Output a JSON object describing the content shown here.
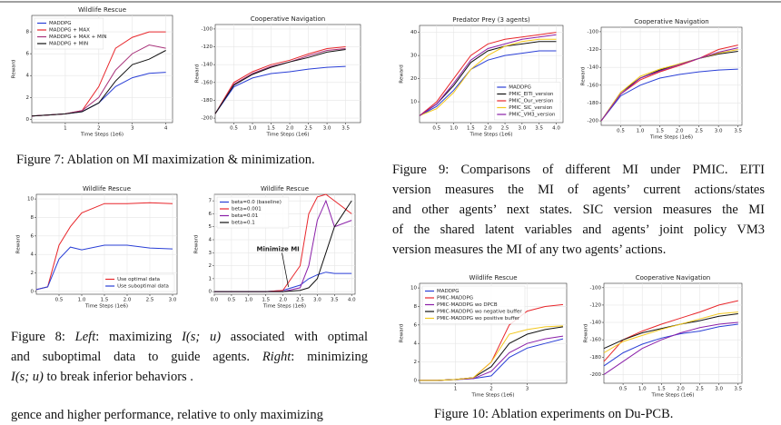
{
  "chart_data": [
    {
      "type": "line",
      "title": "Wildlife Rescue",
      "xlabel": "Time Steps (1e6)",
      "ylabel": "Reward",
      "legend": "upper left",
      "grid": true,
      "x": [
        0,
        0.5,
        1,
        1.5,
        2,
        2.5,
        3,
        3.5,
        4
      ],
      "xlim": [
        0,
        4.2
      ],
      "xticks": [
        1,
        2,
        3,
        4
      ],
      "ylim": [
        -0.3,
        9.5
      ],
      "yticks": [
        0,
        2,
        4,
        6,
        8
      ],
      "series": [
        {
          "name": "MADDPG",
          "color": "#2a3fd6",
          "values": [
            0.3,
            0.4,
            0.5,
            0.7,
            1.5,
            3,
            3.8,
            4.2,
            4.3
          ]
        },
        {
          "name": "MADDPG + MAX",
          "color": "#e8262b",
          "values": [
            0.3,
            0.4,
            0.5,
            0.8,
            3,
            6.5,
            7.5,
            8,
            8
          ]
        },
        {
          "name": "MADDPG + MAX + MIN",
          "color": "#a8327a",
          "values": [
            0.3,
            0.4,
            0.5,
            0.8,
            2,
            4.5,
            6,
            6.8,
            6.5
          ]
        },
        {
          "name": "MADDPG + MIN",
          "color": "#111111",
          "values": [
            0.3,
            0.4,
            0.5,
            0.7,
            1.5,
            3.5,
            5,
            5.5,
            6.3
          ]
        }
      ]
    },
    {
      "type": "line",
      "title": "Cooperative Navigation",
      "xlabel": "Time Steps (1e6)",
      "ylabel": "Reward",
      "grid": true,
      "x": [
        0,
        0.5,
        1,
        1.5,
        2,
        2.5,
        3,
        3.5
      ],
      "xlim": [
        0,
        3.9
      ],
      "xticks": [
        0.5,
        {
          "value": 1,
          "label": "1.0"
        },
        1.5,
        {
          "value": 2,
          "label": "2.0"
        },
        2.5,
        {
          "value": 3,
          "label": "3.0"
        },
        3.5
      ],
      "ylim": [
        -205,
        -95
      ],
      "yticks": [
        -200,
        -180,
        -160,
        -140,
        -120,
        -100
      ],
      "series": [
        {
          "color": "#2a3fd6",
          "values": [
            -195,
            -165,
            -155,
            -150,
            -148,
            -145,
            -143,
            -142
          ]
        },
        {
          "color": "#e8262b",
          "values": [
            -195,
            -160,
            -148,
            -140,
            -135,
            -128,
            -122,
            -120
          ]
        },
        {
          "color": "#a8327a",
          "values": [
            -195,
            -162,
            -150,
            -142,
            -137,
            -130,
            -124,
            -122
          ]
        },
        {
          "color": "#111111",
          "values": [
            -195,
            -163,
            -151,
            -143,
            -137,
            -132,
            -126,
            -123
          ]
        }
      ]
    },
    {
      "type": "line",
      "title": "Wildlife Rescue",
      "xlabel": "Time Steps (1e6)",
      "ylabel": "Reward",
      "legend": "lower right",
      "grid": true,
      "x": [
        0,
        0.25,
        0.5,
        0.75,
        1,
        1.5,
        2,
        2.5,
        3
      ],
      "xlim": [
        0,
        3.1
      ],
      "xticks": [
        0.5,
        {
          "value": 1,
          "label": "1.0"
        },
        1.5,
        {
          "value": 2,
          "label": "2.0"
        },
        2.5,
        {
          "value": 3,
          "label": "3.0"
        }
      ],
      "ylim": [
        -0.3,
        10.5
      ],
      "yticks": [
        0,
        2,
        4,
        6,
        8,
        10
      ],
      "series": [
        {
          "name": "Use optimal data",
          "color": "#e8262b",
          "values": [
            0.2,
            0.5,
            5,
            7,
            8.5,
            9.5,
            9.5,
            9.6,
            9.5
          ]
        },
        {
          "name": "Use suboptimal data",
          "color": "#2a3fd6",
          "values": [
            0.2,
            0.5,
            3.5,
            4.8,
            4.5,
            5,
            5,
            4.7,
            4.6
          ]
        }
      ]
    },
    {
      "type": "line",
      "title": "Wildlife Rescue",
      "xlabel": "Time Steps (1e6)",
      "ylabel": "Reward",
      "legend": "upper left",
      "grid": true,
      "annotation": "Minimize MI",
      "x": [
        0,
        0.5,
        1,
        1.5,
        2,
        2.5,
        2.75,
        3,
        3.25,
        3.5,
        4
      ],
      "xlim": [
        0,
        4.1
      ],
      "xticks": [
        {
          "value": 0,
          "label": "0.0"
        },
        0.5,
        {
          "value": 1,
          "label": "1.0"
        },
        1.5,
        {
          "value": 2,
          "label": "2.0"
        },
        2.5,
        {
          "value": 3,
          "label": "3.0"
        },
        3.5,
        {
          "value": 4,
          "label": "4.0"
        }
      ],
      "ylim": [
        -0.2,
        7.5
      ],
      "yticks": [
        0,
        1,
        2,
        3,
        4,
        5,
        6,
        7
      ],
      "series": [
        {
          "name": "beta=0.0 (baseline)",
          "color": "#2a3fd6",
          "values": [
            0,
            0,
            0,
            0,
            0.1,
            0.5,
            1,
            1.3,
            1.5,
            1.4,
            1.4
          ]
        },
        {
          "name": "beta=0.001",
          "color": "#e8262b",
          "values": [
            0,
            0,
            0,
            0,
            0.1,
            2,
            6,
            7.3,
            7.5,
            7,
            6
          ]
        },
        {
          "name": "beta=0.01",
          "color": "#8a1fa8",
          "values": [
            0,
            0,
            0,
            0,
            0,
            0.3,
            2,
            5.5,
            7,
            5,
            5.5
          ]
        },
        {
          "name": "beta=0.1",
          "color": "#111111",
          "values": [
            0,
            0,
            0,
            0,
            0,
            0.1,
            0.3,
            1,
            3,
            5,
            7
          ]
        }
      ]
    },
    {
      "type": "line",
      "title": "Predator Prey (3 agents)",
      "xlabel": "Time Steps (1e6)",
      "ylabel": "Reward",
      "legend": "lower right",
      "grid": true,
      "x": [
        0,
        0.5,
        1,
        1.5,
        2,
        2.5,
        3,
        3.5,
        4
      ],
      "xlim": [
        0,
        4.2
      ],
      "xticks": [
        0.5,
        {
          "value": 1,
          "label": "1.0"
        },
        1.5,
        {
          "value": 2,
          "label": "2.0"
        },
        2.5,
        {
          "value": 3,
          "label": "3.0"
        },
        3.5,
        {
          "value": 4,
          "label": "4.0"
        }
      ],
      "ylim": [
        1,
        43
      ],
      "yticks": [
        10,
        20,
        30,
        40
      ],
      "series": [
        {
          "name": "MADDPG",
          "color": "#2a3fd6",
          "values": [
            4,
            8,
            15,
            24,
            28,
            30,
            31,
            32,
            32
          ]
        },
        {
          "name": "PMIC_EITI_version",
          "color": "#111111",
          "values": [
            4,
            9,
            17,
            27,
            32,
            34,
            35,
            36,
            36
          ]
        },
        {
          "name": "PMIC_Our_version",
          "color": "#e8262b",
          "values": [
            4,
            10,
            20,
            30,
            35,
            37,
            38,
            39,
            40
          ]
        },
        {
          "name": "PMIC_SIC_version",
          "color": "#f2c81e",
          "values": [
            4,
            7,
            14,
            24,
            30,
            34,
            36,
            37,
            37
          ]
        },
        {
          "name": "PMIC_VM3_version",
          "color": "#8a1fa8",
          "values": [
            4,
            9,
            18,
            28,
            33,
            35,
            37,
            38,
            39
          ]
        }
      ]
    },
    {
      "type": "line",
      "title": "Cooperative Navigation",
      "xlabel": "Time Steps (1e6)",
      "ylabel": "Reward",
      "grid": true,
      "x": [
        0,
        0.5,
        1,
        1.5,
        2,
        2.5,
        3,
        3.5
      ],
      "xlim": [
        0,
        3.6
      ],
      "xticks": [
        0.5,
        {
          "value": 1,
          "label": "1.0"
        },
        1.5,
        {
          "value": 2,
          "label": "2.0"
        },
        2.5,
        {
          "value": 3,
          "label": "3.0"
        },
        3.5
      ],
      "ylim": [
        -205,
        -95
      ],
      "yticks": [
        -200,
        -180,
        -160,
        -140,
        -120,
        -100
      ],
      "series": [
        {
          "color": "#2a3fd6",
          "values": [
            -200,
            -172,
            -160,
            -152,
            -148,
            -145,
            -143,
            -142
          ]
        },
        {
          "color": "#111111",
          "values": [
            -200,
            -168,
            -152,
            -143,
            -136,
            -130,
            -125,
            -122
          ]
        },
        {
          "color": "#e8262b",
          "values": [
            -200,
            -170,
            -154,
            -145,
            -138,
            -130,
            -120,
            -115
          ]
        },
        {
          "color": "#f2c81e",
          "values": [
            -200,
            -168,
            -150,
            -142,
            -136,
            -130,
            -124,
            -120
          ]
        },
        {
          "color": "#8a1fa8",
          "values": [
            -200,
            -170,
            -152,
            -144,
            -137,
            -130,
            -123,
            -118
          ]
        }
      ]
    },
    {
      "type": "line",
      "title": "Wildlife Rescue",
      "xlabel": "Time Steps (1e6)",
      "ylabel": "Reward",
      "legend": "upper left",
      "grid": true,
      "x": [
        0,
        0.5,
        1,
        1.5,
        2,
        2.5,
        3,
        3.5,
        4
      ],
      "xlim": [
        0,
        4.1
      ],
      "xticks": [
        1,
        2,
        3
      ],
      "ylim": [
        -0.3,
        10.5
      ],
      "yticks": [
        0,
        2,
        4,
        6,
        8,
        10
      ],
      "series": [
        {
          "name": "MADDPG",
          "color": "#2a3fd6",
          "values": [
            0,
            0,
            0.1,
            0.2,
            0.5,
            2.5,
            3.5,
            4,
            4.5
          ]
        },
        {
          "name": "PMIC-MADDPG",
          "color": "#e8262b",
          "values": [
            0,
            0,
            0.1,
            0.3,
            2,
            6,
            7.5,
            8,
            8.2
          ]
        },
        {
          "name": "PMIC-MADDPG wo DPCB",
          "color": "#8a1fa8",
          "values": [
            0,
            0,
            0.1,
            0.2,
            1,
            3,
            4,
            4.5,
            4.8
          ]
        },
        {
          "name": "PMIC-MADDPG wo negative buffer",
          "color": "#111111",
          "values": [
            0,
            0,
            0.1,
            0.3,
            1.5,
            4,
            5,
            5.5,
            5.8
          ]
        },
        {
          "name": "PMIC-MADDPG wo positive buffer",
          "color": "#f2c81e",
          "values": [
            0,
            0,
            0.1,
            0.3,
            2,
            5,
            5.5,
            5.8,
            5.9
          ]
        }
      ]
    },
    {
      "type": "line",
      "title": "Cooperative Navigation",
      "xlabel": "Time Steps (1e6)",
      "ylabel": "Reward",
      "grid": true,
      "x": [
        0,
        0.5,
        1,
        1.5,
        2,
        2.5,
        3,
        3.5
      ],
      "xlim": [
        0,
        3.6
      ],
      "xticks": [
        0.5,
        {
          "value": 1,
          "label": "1.0"
        },
        1.5,
        {
          "value": 2,
          "label": "2.0"
        },
        2.5,
        {
          "value": 3,
          "label": "3.0"
        },
        3.5
      ],
      "ylim": [
        -210,
        -95
      ],
      "yticks": [
        -200,
        -180,
        -160,
        -140,
        -120,
        -100
      ],
      "series": [
        {
          "color": "#2a3fd6",
          "values": [
            -190,
            -175,
            -165,
            -158,
            -153,
            -150,
            -145,
            -142
          ]
        },
        {
          "color": "#e8262b",
          "values": [
            -185,
            -160,
            -150,
            -142,
            -135,
            -128,
            -120,
            -115
          ]
        },
        {
          "color": "#8a1fa8",
          "values": [
            -200,
            -185,
            -170,
            -160,
            -152,
            -146,
            -142,
            -140
          ]
        },
        {
          "color": "#111111",
          "values": [
            -170,
            -160,
            -152,
            -147,
            -142,
            -138,
            -133,
            -130
          ]
        },
        {
          "color": "#f2c81e",
          "values": [
            -175,
            -162,
            -155,
            -148,
            -142,
            -136,
            -130,
            -128
          ]
        }
      ]
    }
  ],
  "captions": [
    {
      "lines": [
        "Figure 7: Ablation on MI maximization & minimization."
      ]
    },
    {
      "lines": [
        [
          {
            "text": "Figure 8: "
          },
          {
            "text": "Left",
            "italic": true
          },
          {
            "text": ": maximizing "
          },
          {
            "text": "I(s; u)",
            "italic": true
          },
          {
            "text": " associated with optimal"
          }
        ],
        [
          {
            "text": "and suboptimal data to guide agents. "
          },
          {
            "text": "Right",
            "italic": true
          },
          {
            "text": ": minimizing"
          }
        ],
        [
          {
            "text": "I(s; u)",
            "italic": true
          },
          {
            "text": " to break inferior behaviors ."
          }
        ]
      ]
    },
    {
      "lines": [
        "Figure 9: Comparisons of different MI under PMIC. EITI",
        "version measures the MI of agents’ current actions/states",
        "and other agents’ next states. SIC version measures the MI",
        "of the shared latent variables and agents’ joint policy VM3",
        "version measures the MI of any two agents’ actions."
      ]
    },
    {
      "lines": [
        "Figure 10: Ablation experiments on Du-PCB."
      ]
    }
  ],
  "body_text": "gence and higher performance, relative to only maximizing"
}
